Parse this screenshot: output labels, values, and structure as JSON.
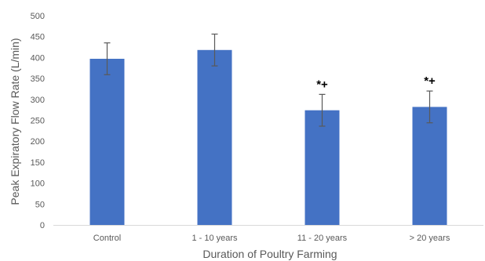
{
  "chart_data": {
    "type": "bar",
    "title": "",
    "xlabel": "Duration of Poultry Farming",
    "ylabel": "Peak Expiratory Flow Rate (L/min)",
    "ylim": [
      0,
      500
    ],
    "yticks": [
      0,
      50,
      100,
      150,
      200,
      250,
      300,
      350,
      400,
      450,
      500
    ],
    "grid": false,
    "legend": "none",
    "categories": [
      "Control",
      "1 - 10 years",
      "11 - 20 years",
      "> 20 years"
    ],
    "values": [
      397,
      418,
      274,
      282
    ],
    "error": [
      38,
      38,
      38,
      38
    ],
    "annotations": [
      "",
      "",
      "*+",
      "*+"
    ],
    "bar_color": "#4472c4",
    "error_color": "#595959"
  }
}
